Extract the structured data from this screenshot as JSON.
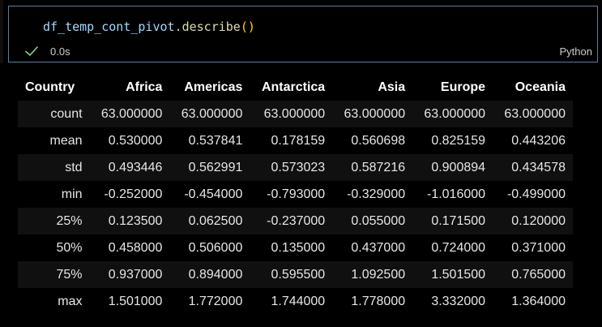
{
  "cell": {
    "code": {
      "variable": "df_temp_cont_pivot",
      "dot": ".",
      "method": "describe",
      "parens": "()"
    },
    "status": "success",
    "exec_time": "0.0s",
    "language": "Python"
  },
  "colors": {
    "cell_border": "#5a7fa6",
    "check": "#89d185",
    "variable": "#9cdcfe",
    "method": "#dcdcaa",
    "parens": "#ffd700",
    "stripe": "#101010"
  },
  "table": {
    "index_header": "Country",
    "columns": [
      "Africa",
      "Americas",
      "Antarctica",
      "Asia",
      "Europe",
      "Oceania"
    ],
    "rows": [
      {
        "label": "count",
        "values": [
          "63.000000",
          "63.000000",
          "63.000000",
          "63.000000",
          "63.000000",
          "63.000000"
        ]
      },
      {
        "label": "mean",
        "values": [
          "0.530000",
          "0.537841",
          "0.178159",
          "0.560698",
          "0.825159",
          "0.443206"
        ]
      },
      {
        "label": "std",
        "values": [
          "0.493446",
          "0.562991",
          "0.573023",
          "0.587216",
          "0.900894",
          "0.434578"
        ]
      },
      {
        "label": "min",
        "values": [
          "-0.252000",
          "-0.454000",
          "-0.793000",
          "-0.329000",
          "-1.016000",
          "-0.499000"
        ]
      },
      {
        "label": "25%",
        "values": [
          "0.123500",
          "0.062500",
          "-0.237000",
          "0.055000",
          "0.171500",
          "0.120000"
        ]
      },
      {
        "label": "50%",
        "values": [
          "0.458000",
          "0.506000",
          "0.135000",
          "0.437000",
          "0.724000",
          "0.371000"
        ]
      },
      {
        "label": "75%",
        "values": [
          "0.937000",
          "0.894000",
          "0.595500",
          "1.092500",
          "1.501500",
          "0.765000"
        ]
      },
      {
        "label": "max",
        "values": [
          "1.501000",
          "1.772000",
          "1.744000",
          "1.778000",
          "3.332000",
          "1.364000"
        ]
      }
    ]
  }
}
